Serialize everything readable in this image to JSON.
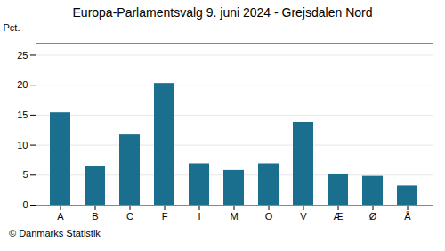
{
  "chart_data": {
    "type": "bar",
    "title": "Europa-Parlamentsvalg 9. juni 2024 - Grejsdalen Nord",
    "ylabel": "Pct.",
    "caption": "© Danmarks Statistik",
    "categories": [
      "A",
      "B",
      "C",
      "F",
      "I",
      "M",
      "O",
      "V",
      "Æ",
      "Ø",
      "Å"
    ],
    "values": [
      15.4,
      6.5,
      11.7,
      20.3,
      6.9,
      5.8,
      6.9,
      13.8,
      5.2,
      4.8,
      3.2
    ],
    "color": "#1a6e8e",
    "ylim": [
      0,
      27
    ],
    "yticks": [
      0,
      5,
      10,
      15,
      20,
      25
    ],
    "grid": true
  }
}
